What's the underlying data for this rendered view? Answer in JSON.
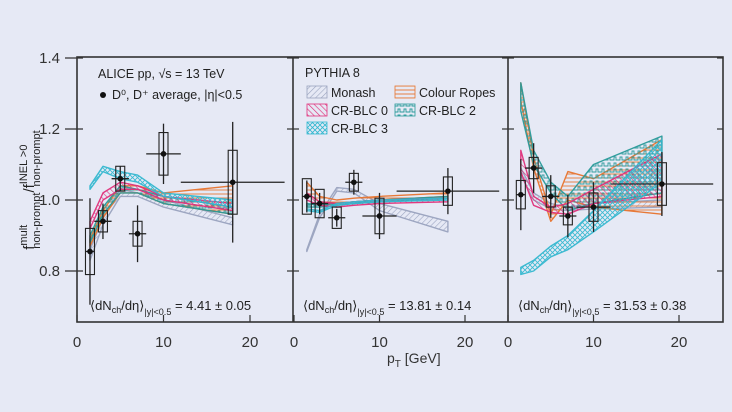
{
  "chart_data": {
    "type": "line",
    "title": "",
    "xlabel": "p_T [GeV]",
    "xlabel_main": "p",
    "xlabel_sub": "T",
    "xlabel_unit": " [GeV]",
    "ylabel": "f^mult_non-prompt / f^INEL>0_non-prompt",
    "ylabel_parts": {
      "f1": "f",
      "sup1": "mult",
      "sub1": "non-prompt",
      "slash": "/",
      "f2": "f",
      "sup2": "INEL >0",
      "sub2": "non-prompt"
    },
    "ylim": [
      0.66,
      1.405
    ],
    "xlim": [
      0,
      25
    ],
    "yticks": [
      "1.4",
      "1.2",
      "1.0",
      "0.8"
    ],
    "ytick_values": [
      1.4,
      1.2,
      1.0,
      0.8
    ],
    "xticks": [
      "0",
      "10",
      "20"
    ],
    "xtick_values": [
      0,
      10,
      20
    ],
    "grid": false,
    "colors": {
      "background": "#e6e9f5",
      "axis": "#333333",
      "data": "#111111",
      "Monash": "#9aa3bf",
      "CR-BLC 0": "#e0307a",
      "CR-BLC 2": "#2a9a9a",
      "CR-BLC 3": "#35b8d0",
      "Colour Ropes": "#e8742e"
    },
    "annotations": {
      "experiment": "ALICE pp, √s = 13 TeV",
      "data_label": "D⁰, D⁺ average, |η|<0.5",
      "generator": "PYTHIA 8"
    },
    "legend": {
      "placement": "top-center (middle panel)",
      "entries": [
        "Monash",
        "Colour Ropes",
        "CR-BLC 0",
        "CR-BLC 2",
        "CR-BLC 3"
      ]
    },
    "panels": [
      {
        "multiplicity_label": "⟨dN_ch/dη⟩_|y|<0.5 = 4.41 ± 0.05",
        "mult_prefix": "⟨dN",
        "mult_sub1": "ch",
        "mult_mid": "/dη⟩",
        "mult_sub2": "|y|<0.5",
        "mult_value": " = 4.41 ± 0.05",
        "data": {
          "x": [
            1.5,
            3,
            5,
            7,
            10,
            18
          ],
          "y": [
            0.855,
            0.94,
            1.06,
            0.905,
            1.13,
            1.05
          ],
          "xerr": [
            0.5,
            1,
            1,
            1,
            2,
            6
          ],
          "yerr_stat": [
            0.15,
            0.05,
            0.035,
            0.08,
            0.085,
            0.17
          ],
          "yerr_syst": [
            0.065,
            0.03,
            0.035,
            0.035,
            0.06,
            0.09
          ]
        },
        "models": [
          {
            "name": "Monash",
            "x": [
              1.5,
              3,
              5,
              7,
              10,
              18
            ],
            "lo": [
              0.83,
              0.93,
              1.01,
              1.01,
              0.98,
              0.93
            ],
            "hi": [
              0.86,
              0.95,
              1.03,
              1.02,
              1.0,
              0.95
            ]
          },
          {
            "name": "Colour Ropes",
            "x": [
              1.5,
              3,
              5,
              7,
              10,
              18
            ],
            "lo": [
              0.87,
              0.95,
              1.02,
              1.02,
              0.99,
              0.96
            ],
            "hi": [
              0.89,
              0.97,
              1.04,
              1.04,
              1.02,
              1.04
            ]
          },
          {
            "name": "CR-BLC 2",
            "x": [
              1.5,
              3,
              5,
              7,
              10,
              18
            ],
            "lo": [
              0.88,
              0.96,
              1.02,
              1.02,
              0.99,
              0.96
            ],
            "hi": [
              0.9,
              0.98,
              1.04,
              1.03,
              1.01,
              0.98
            ]
          },
          {
            "name": "CR-BLC 0",
            "x": [
              1.5,
              3,
              5,
              7,
              10,
              18
            ],
            "lo": [
              0.92,
              1.0,
              1.03,
              1.03,
              1.0,
              0.97
            ],
            "hi": [
              0.94,
              1.02,
              1.05,
              1.04,
              1.01,
              0.99
            ]
          },
          {
            "name": "CR-BLC 3",
            "x": [
              1.5,
              3,
              5,
              7,
              10,
              18
            ],
            "lo": [
              1.03,
              1.08,
              1.06,
              1.05,
              1.01,
              0.98
            ],
            "hi": [
              1.04,
              1.095,
              1.08,
              1.07,
              1.02,
              1.0
            ]
          }
        ]
      },
      {
        "multiplicity_label": "⟨dN_ch/dη⟩_|y|<0.5 = 13.81 ± 0.14",
        "mult_prefix": "⟨dN",
        "mult_sub1": "ch",
        "mult_mid": "/dη⟩",
        "mult_sub2": "|y|<0.5",
        "mult_value": " = 13.81 ± 0.14",
        "data": {
          "x": [
            1.5,
            3,
            5,
            7,
            10,
            18
          ],
          "y": [
            1.01,
            0.99,
            0.95,
            1.05,
            0.955,
            1.025
          ],
          "xerr": [
            0.5,
            1,
            1,
            1,
            2,
            6
          ],
          "yerr_stat": [
            0.045,
            0.03,
            0.025,
            0.035,
            0.065,
            0.065
          ],
          "yerr_syst": [
            0.05,
            0.04,
            0.03,
            0.025,
            0.05,
            0.04
          ]
        },
        "models": [
          {
            "name": "Monash",
            "x": [
              1.5,
              3,
              5,
              7,
              10,
              18
            ],
            "lo": [
              0.855,
              0.95,
              1.025,
              1.02,
              0.97,
              0.91
            ],
            "hi": [
              0.86,
              0.96,
              1.035,
              1.03,
              0.99,
              0.94
            ]
          },
          {
            "name": "Colour Ropes",
            "x": [
              1.5,
              3,
              5,
              7,
              10,
              18
            ],
            "lo": [
              1.02,
              0.995,
              0.99,
              0.995,
              1.0,
              1.01
            ],
            "hi": [
              1.05,
              1.01,
              1.0,
              1.005,
              1.01,
              1.02
            ]
          },
          {
            "name": "CR-BLC 2",
            "x": [
              1.5,
              3,
              5,
              7,
              10,
              18
            ],
            "lo": [
              0.98,
              0.98,
              0.985,
              0.99,
              0.995,
              1.005
            ],
            "hi": [
              0.99,
              0.985,
              0.99,
              0.995,
              1.0,
              1.01
            ]
          },
          {
            "name": "CR-BLC 0",
            "x": [
              1.5,
              3,
              5,
              7,
              10,
              18
            ],
            "lo": [
              1.0,
              0.985,
              0.98,
              0.985,
              0.99,
              0.995
            ],
            "hi": [
              1.02,
              0.995,
              0.99,
              0.995,
              1.0,
              1.005
            ]
          },
          {
            "name": "CR-BLC 3",
            "x": [
              1.5,
              3,
              5,
              7,
              10,
              18
            ],
            "lo": [
              0.97,
              0.965,
              0.985,
              0.99,
              0.995,
              1.0
            ],
            "hi": [
              0.975,
              0.97,
              0.99,
              0.995,
              1.0,
              1.005
            ]
          }
        ]
      },
      {
        "multiplicity_label": "⟨dN_ch/dη⟩_|y|<0.5 = 31.53 ± 0.38",
        "mult_prefix": "⟨dN",
        "mult_sub1": "ch",
        "mult_mid": "/dη⟩",
        "mult_sub2": "|y|<0.5",
        "mult_value": " = 31.53 ± 0.38",
        "data": {
          "x": [
            1.5,
            3,
            5,
            7,
            10,
            18
          ],
          "y": [
            1.015,
            1.09,
            1.01,
            0.955,
            0.98,
            1.045
          ],
          "xerr": [
            0.5,
            1,
            1,
            1,
            2,
            6
          ],
          "yerr_stat": [
            0.1,
            0.07,
            0.06,
            0.06,
            0.07,
            0.09
          ],
          "yerr_syst": [
            0.04,
            0.03,
            0.03,
            0.025,
            0.04,
            0.06
          ]
        },
        "models": [
          {
            "name": "Monash",
            "x": [
              1.5,
              3,
              5,
              7,
              10,
              18
            ],
            "lo": [
              1.07,
              1.0,
              0.975,
              0.97,
              0.975,
              0.98
            ],
            "hi": [
              1.09,
              1.02,
              0.99,
              0.98,
              0.99,
              1.0
            ]
          },
          {
            "name": "Colour Ropes",
            "x": [
              1.5,
              3,
              5,
              7,
              10,
              18
            ],
            "lo": [
              1.28,
              1.09,
              0.94,
              1.0,
              0.98,
              0.96
            ],
            "hi": [
              1.33,
              1.12,
              0.96,
              1.08,
              1.06,
              1.17
            ]
          },
          {
            "name": "CR-BLC 2",
            "x": [
              1.5,
              3,
              5,
              7,
              10,
              18
            ],
            "lo": [
              1.25,
              1.1,
              1.02,
              0.97,
              0.99,
              1.02
            ],
            "hi": [
              1.33,
              1.14,
              1.05,
              1.01,
              1.1,
              1.18
            ]
          },
          {
            "name": "CR-BLC 0",
            "x": [
              1.5,
              3,
              5,
              7,
              10,
              18
            ],
            "lo": [
              1.08,
              0.985,
              0.965,
              0.96,
              0.99,
              1.01
            ],
            "hi": [
              1.14,
              1.01,
              0.98,
              0.99,
              1.03,
              1.13
            ]
          },
          {
            "name": "CR-BLC 3",
            "x": [
              1.5,
              3,
              5,
              7,
              10,
              18
            ],
            "lo": [
              0.79,
              0.8,
              0.84,
              0.86,
              0.91,
              1.05
            ],
            "hi": [
              0.81,
              0.83,
              0.87,
              0.9,
              0.97,
              1.17
            ]
          }
        ]
      }
    ]
  }
}
